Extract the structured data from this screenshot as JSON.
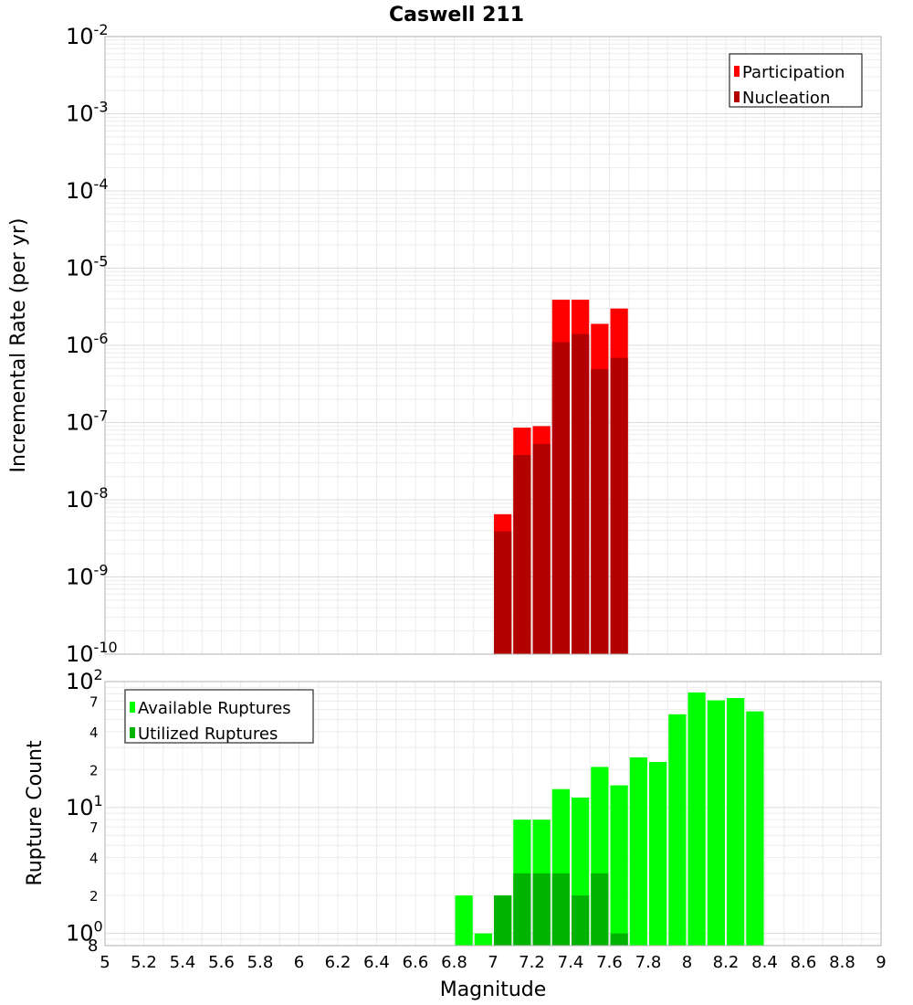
{
  "chart_data": [
    {
      "type": "bar",
      "title": "Caswell 211",
      "ylabel": "Incremental Rate (per yr)",
      "yscale": "log",
      "ylim": [
        1e-10,
        0.01
      ],
      "xlim": [
        5,
        9
      ],
      "y_ticks": [
        {
          "base": "10",
          "exp": "-10"
        },
        {
          "base": "10",
          "exp": "-9"
        },
        {
          "base": "10",
          "exp": "-8"
        },
        {
          "base": "10",
          "exp": "-7"
        },
        {
          "base": "10",
          "exp": "-6"
        },
        {
          "base": "10",
          "exp": "-5"
        },
        {
          "base": "10",
          "exp": "-4"
        },
        {
          "base": "10",
          "exp": "-3"
        },
        {
          "base": "10",
          "exp": "-2"
        }
      ],
      "bin_width": 0.1,
      "legend": "top-right",
      "grid": true,
      "series": [
        {
          "name": "Participation",
          "color": "#ff0000",
          "x": [
            7.05,
            7.15,
            7.25,
            7.35,
            7.45,
            7.55,
            7.65
          ],
          "values": [
            6.5e-09,
            8.6e-08,
            9e-08,
            3.9e-06,
            3.9e-06,
            1.9e-06,
            3e-06
          ]
        },
        {
          "name": "Nucleation",
          "color": "#b30000",
          "x": [
            7.05,
            7.15,
            7.25,
            7.35,
            7.45,
            7.55,
            7.65
          ],
          "values": [
            3.9e-09,
            3.8e-08,
            5.3e-08,
            1.1e-06,
            1.4e-06,
            4.9e-07,
            6.9e-07
          ]
        }
      ]
    },
    {
      "type": "bar",
      "ylabel": "Rupture Count",
      "xlabel": "Magnitude",
      "yscale": "log",
      "ylim": [
        0.8,
        100
      ],
      "xlim": [
        5,
        9
      ],
      "x_ticks": [
        "5",
        "5.2",
        "5.4",
        "5.6",
        "5.8",
        "6",
        "6.2",
        "6.4",
        "6.6",
        "6.8",
        "7",
        "7.2",
        "7.4",
        "7.6",
        "7.8",
        "8",
        "8.2",
        "8.4",
        "8.6",
        "8.8",
        "9"
      ],
      "y_ticks": [
        {
          "base": "10",
          "exp": "0"
        },
        {
          "base": "10",
          "exp": "1"
        },
        {
          "base": "10",
          "exp": "2"
        }
      ],
      "y_minor_ticks": [
        {
          "value": 0.8,
          "label": "8"
        },
        {
          "value": 2,
          "label": "2"
        },
        {
          "value": 4,
          "label": "4"
        },
        {
          "value": 7,
          "label": "7"
        },
        {
          "value": 20,
          "label": "2"
        },
        {
          "value": 40,
          "label": "4"
        },
        {
          "value": 70,
          "label": "7"
        }
      ],
      "bin_width": 0.1,
      "legend": "top-left",
      "grid": true,
      "series": [
        {
          "name": "Available Ruptures",
          "color": "#00ff00",
          "x": [
            6.85,
            6.95,
            7.05,
            7.15,
            7.25,
            7.35,
            7.45,
            7.55,
            7.65,
            7.75,
            7.85,
            7.95,
            8.05,
            8.15,
            8.25,
            8.35
          ],
          "values": [
            2,
            1,
            2,
            8,
            8,
            14,
            12,
            21,
            15,
            25,
            23,
            55,
            82,
            71,
            74,
            58
          ]
        },
        {
          "name": "Utilized Ruptures",
          "color": "#00b300",
          "x": [
            7.05,
            7.15,
            7.25,
            7.35,
            7.45,
            7.55,
            7.65
          ],
          "values": [
            2,
            3,
            3,
            3,
            2,
            3,
            1
          ]
        }
      ]
    }
  ]
}
